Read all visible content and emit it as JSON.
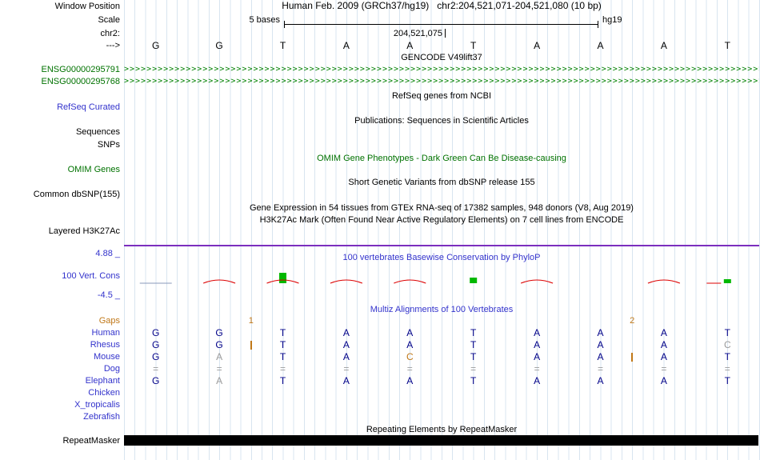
{
  "header": {
    "genome_title": "Human Feb. 2009 (GRCh37/hg19)   chr2:204,521,071-204,521,080 (10 bp)",
    "scale_label": "5 bases",
    "assembly": "hg19",
    "position_label": "204,521,075"
  },
  "left_labels": {
    "window_position": "Window Position",
    "scale": "Scale",
    "chromosome": "chr2:",
    "strand_arrow": "--->",
    "gene_1": "ENSG00000295791",
    "gene_2": "ENSG00000295768",
    "refseq": "RefSeq Curated",
    "sequences": "Sequences",
    "snps": "SNPs",
    "omim_genes": "OMIM Genes",
    "dbsnp": "Common dbSNP(155)",
    "h3k27ac": "Layered H3K27Ac",
    "cons_max": "4.88 _",
    "cons": "100 Vert. Cons",
    "cons_min": "-4.5 _",
    "gaps": "Gaps",
    "repeatmasker": "RepeatMasker"
  },
  "track_titles": {
    "gencode": "GENCODE V49lift37",
    "refseq": "RefSeq genes from NCBI",
    "publications": "Publications: Sequences in Scientific Articles",
    "omim": "OMIM Gene Phenotypes - Dark Green Can Be Disease-causing",
    "dbsnp": "Short Genetic Variants from dbSNP release 155",
    "gtex": "Gene Expression in 54 tissues from GTEx RNA-seq of 17382 samples, 948 donors (V8, Aug 2019)",
    "h3k27ac": "H3K27Ac Mark (Often Found Near Active Regulatory Elements) on 7 cell lines from ENCODE",
    "phylop": "100 vertebrates Basewise Conservation by PhyloP",
    "multiz": "Multiz Alignments of 100 Vertebrates",
    "repeatmasker": "Repeating Elements by RepeatMasker"
  },
  "sequence": {
    "bases": [
      "G",
      "G",
      "T",
      "A",
      "A",
      "T",
      "A",
      "A",
      "A",
      "T"
    ]
  },
  "alignment": {
    "species": [
      "Human",
      "Rhesus",
      "Mouse",
      "Dog",
      "Elephant",
      "Chicken",
      "X_tropicalis",
      "Zebrafish"
    ],
    "rows": [
      {
        "name": "human",
        "cells": [
          "b:G",
          "b:G",
          "b:T",
          "b:A",
          "b:A",
          "b:T",
          "b:A",
          "b:A",
          "b:A",
          "b:T"
        ]
      },
      {
        "name": "rhesus",
        "cells": [
          "b:G",
          "b:G",
          "b:T",
          "b:A",
          "b:A",
          "b:T",
          "b:A",
          "b:A",
          "b:A",
          "g:C"
        ]
      },
      {
        "name": "mouse",
        "cells": [
          "b:G",
          "g:A",
          "b:T",
          "b:A",
          "o:C",
          "b:T",
          "b:A",
          "b:A",
          "b:A",
          "b:T"
        ]
      },
      {
        "name": "dog",
        "cells": [
          "g:=",
          "g:=",
          "g:=",
          "g:=",
          "g:=",
          "g:=",
          "g:=",
          "g:=",
          "g:=",
          "g:="
        ]
      },
      {
        "name": "elephant",
        "cells": [
          "b:G",
          "g:A",
          "b:T",
          "b:A",
          "b:A",
          "b:T",
          "b:A",
          "b:A",
          "b:A",
          "b:T"
        ]
      },
      {
        "name": "chicken",
        "cells": [
          "",
          "",
          "",
          "",
          "",
          "",
          "",
          "",
          "",
          ""
        ]
      },
      {
        "name": "x_tropicalis",
        "cells": [
          "",
          "",
          "",
          "",
          "",
          "",
          "",
          "",
          "",
          ""
        ]
      },
      {
        "name": "zebrafish",
        "cells": [
          "",
          "",
          "",
          "",
          "",
          "",
          "",
          "",
          "",
          ""
        ]
      }
    ],
    "inserts": [
      {
        "row": "rhesus",
        "after_col": 1,
        "label": "1"
      },
      {
        "row": "mouse",
        "after_col": 7,
        "label": "2"
      }
    ]
  },
  "conservation": {
    "marks": [
      {
        "col": 0,
        "type": "flat"
      },
      {
        "col": 1,
        "type": "arc"
      },
      {
        "col": 2,
        "type": "bar",
        "h": 13
      },
      {
        "col": 2,
        "type": "arc"
      },
      {
        "col": 3,
        "type": "arc"
      },
      {
        "col": 4,
        "type": "arc"
      },
      {
        "col": 5,
        "type": "bar",
        "h": 7
      },
      {
        "col": 6,
        "type": "arc"
      },
      {
        "col": 8,
        "type": "arc"
      },
      {
        "col": 9,
        "type": "dash"
      },
      {
        "col": 9,
        "type": "bar",
        "h": 5
      }
    ]
  },
  "colors": {
    "link_blue": "#3333cc",
    "track_green": "#007200",
    "orange": "#c07818",
    "navy": "#000088",
    "gray": "#9b9b9b",
    "purple": "#7b2fbe",
    "cons_red": "#dd0000",
    "cons_green": "#00b800",
    "arrow_green": "#008000",
    "gridline": "#d8e4f0"
  }
}
